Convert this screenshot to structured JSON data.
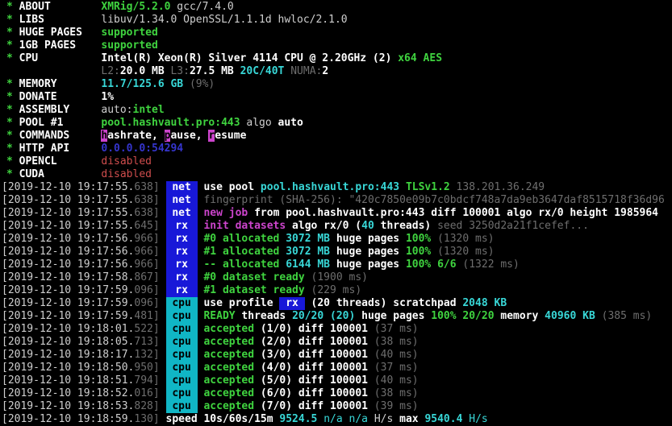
{
  "colors": {
    "background": "#000000",
    "text": "#cfcfcf",
    "bold": "#ffffff",
    "green": "#3fd33f",
    "cyan": "#38d7d7",
    "dim": "#6e6e6e",
    "magenta": "#cc44cc",
    "red": "#cf4d4d",
    "blue_text": "#3535cd",
    "badge_blue_bg": "#1818d8",
    "badge_cyan_bg": "#10b6c5"
  },
  "terminal": {
    "header": [
      {
        "star": "*",
        "label": "ABOUT",
        "segments": [
          [
            "g",
            "XMRig/5.2.0"
          ],
          [
            "w",
            " gcc/7.4.0"
          ]
        ]
      },
      {
        "star": "*",
        "label": "LIBS",
        "segments": [
          [
            "w",
            "libuv/1.34.0 OpenSSL/1.1.1d hwloc/2.1.0"
          ]
        ]
      },
      {
        "star": "*",
        "label": "HUGE PAGES",
        "segments": [
          [
            "g",
            "supported"
          ]
        ]
      },
      {
        "star": "*",
        "label": "1GB PAGES",
        "segments": [
          [
            "g",
            "supported"
          ]
        ]
      },
      {
        "star": "*",
        "label": "CPU",
        "segments": [
          [
            "b",
            "Intel(R) Xeon(R) Silver 4114 CPU @ 2.20GHz (2) "
          ],
          [
            "g",
            "x64 AES"
          ]
        ]
      },
      {
        "star": "",
        "label": "",
        "segments": [
          [
            "d",
            "L2:"
          ],
          [
            "b",
            "20.0 MB"
          ],
          [
            "d",
            " L3:"
          ],
          [
            "b",
            "27.5 MB"
          ],
          [
            "c",
            " 20C/40T"
          ],
          [
            "d",
            " NUMA:"
          ],
          [
            "b",
            "2"
          ]
        ]
      },
      {
        "star": "*",
        "label": "MEMORY",
        "segments": [
          [
            "c",
            "11.7/125.6 GB"
          ],
          [
            "d",
            " (9%)"
          ]
        ]
      },
      {
        "star": "*",
        "label": "DONATE",
        "segments": [
          [
            "b",
            "1%"
          ]
        ]
      },
      {
        "star": "*",
        "label": "ASSEMBLY",
        "segments": [
          [
            "w",
            "auto:"
          ],
          [
            "g",
            "intel"
          ]
        ]
      },
      {
        "star": "*",
        "label": "POOL #1",
        "segments": [
          [
            "g",
            "pool.hashvault.pro:443"
          ],
          [
            "w",
            " algo "
          ],
          [
            "b",
            "auto"
          ]
        ]
      },
      {
        "star": "*",
        "label": "COMMANDS",
        "segments": [
          [
            "hot",
            "h"
          ],
          [
            "b",
            "ashrate, "
          ],
          [
            "hot",
            "p"
          ],
          [
            "b",
            "ause, "
          ],
          [
            "hot",
            "r"
          ],
          [
            "b",
            "esume"
          ]
        ]
      },
      {
        "star": "*",
        "label": "HTTP API",
        "segments": [
          [
            "blu",
            "0.0.0.0:54294"
          ]
        ]
      },
      {
        "star": "*",
        "label": "OPENCL",
        "segments": [
          [
            "r",
            "disabled"
          ]
        ]
      },
      {
        "star": "*",
        "label": "CUDA",
        "segments": [
          [
            "r",
            "disabled"
          ]
        ]
      }
    ],
    "log": [
      {
        "time": "[2019-12-10 19:17:55.",
        "ms": "638]",
        "badge": {
          "text": "net",
          "style": "blue"
        },
        "segments": [
          [
            "b",
            "use pool "
          ],
          [
            "c",
            "pool.hashvault.pro:443"
          ],
          [
            "w",
            " "
          ],
          [
            "g",
            "TLSv1.2"
          ],
          [
            "d",
            " 138.201.36.249"
          ]
        ]
      },
      {
        "time": "[2019-12-10 19:17:55.",
        "ms": "638]",
        "badge": {
          "text": "net",
          "style": "blue"
        },
        "segments": [
          [
            "d",
            "fingerprint (SHA-256): \"420c7850e09b7c0bdcf748a7da9eb3647daf8515718f36d96"
          ]
        ]
      },
      {
        "time": "[2019-12-10 19:17:55.",
        "ms": "638]",
        "badge": {
          "text": "net",
          "style": "blue"
        },
        "segments": [
          [
            "m",
            "new job"
          ],
          [
            "b",
            " from pool.hashvault.pro:443 diff 100001 algo rx/0 height 1985964"
          ]
        ]
      },
      {
        "time": "[2019-12-10 19:17:55.",
        "ms": "645]",
        "badge": {
          "text": "rx",
          "style": "blue"
        },
        "segments": [
          [
            "m",
            "init datasets"
          ],
          [
            "b",
            " algo rx/0 ("
          ],
          [
            "c",
            "40"
          ],
          [
            "b",
            " threads) "
          ],
          [
            "d",
            "seed 3250d2a21f1cefef..."
          ]
        ]
      },
      {
        "time": "[2019-12-10 19:17:56.",
        "ms": "966]",
        "badge": {
          "text": "rx",
          "style": "blue"
        },
        "segments": [
          [
            "g",
            "#0 allocated"
          ],
          [
            "c",
            " 3072 MB"
          ],
          [
            "b",
            " huge pages "
          ],
          [
            "g",
            "100%"
          ],
          [
            "d",
            " (1320 ms)"
          ]
        ]
      },
      {
        "time": "[2019-12-10 19:17:56.",
        "ms": "966]",
        "badge": {
          "text": "rx",
          "style": "blue"
        },
        "segments": [
          [
            "g",
            "#1 allocated"
          ],
          [
            "c",
            " 3072 MB"
          ],
          [
            "b",
            " huge pages "
          ],
          [
            "g",
            "100%"
          ],
          [
            "d",
            " (1320 ms)"
          ]
        ]
      },
      {
        "time": "[2019-12-10 19:17:56.",
        "ms": "966]",
        "badge": {
          "text": "rx",
          "style": "blue"
        },
        "segments": [
          [
            "g",
            "-- allocated"
          ],
          [
            "c",
            " 6144 MB"
          ],
          [
            "b",
            " huge pages "
          ],
          [
            "g",
            "100% 6/6"
          ],
          [
            "d",
            " (1322 ms)"
          ]
        ]
      },
      {
        "time": "[2019-12-10 19:17:58.",
        "ms": "867]",
        "badge": {
          "text": "rx",
          "style": "blue"
        },
        "segments": [
          [
            "g",
            "#0 dataset ready"
          ],
          [
            "d",
            " (1900 ms)"
          ]
        ]
      },
      {
        "time": "[2019-12-10 19:17:59.",
        "ms": "096]",
        "badge": {
          "text": "rx",
          "style": "blue"
        },
        "segments": [
          [
            "g",
            "#1 dataset ready"
          ],
          [
            "d",
            " (229 ms)"
          ]
        ]
      },
      {
        "time": "[2019-12-10 19:17:59.",
        "ms": "096]",
        "badge": {
          "text": "cpu",
          "style": "cyan"
        },
        "segments": [
          [
            "b",
            "use profile "
          ],
          [
            "rxbadge",
            "rx"
          ],
          [
            "b",
            " (20 threads) scratchpad "
          ],
          [
            "c",
            "2048 KB"
          ]
        ]
      },
      {
        "time": "[2019-12-10 19:17:59.",
        "ms": "481]",
        "badge": {
          "text": "cpu",
          "style": "cyan"
        },
        "segments": [
          [
            "g",
            "READY"
          ],
          [
            "b",
            " threads "
          ],
          [
            "c",
            "20/20 (20)"
          ],
          [
            "b",
            " huge pages "
          ],
          [
            "g",
            "100% 20/20"
          ],
          [
            "b",
            " memory "
          ],
          [
            "c",
            "40960 KB"
          ],
          [
            "d",
            " (385 ms)"
          ]
        ]
      },
      {
        "time": "[2019-12-10 19:18:01.",
        "ms": "522]",
        "badge": {
          "text": "cpu",
          "style": "cyan"
        },
        "segments": [
          [
            "g",
            "accepted"
          ],
          [
            "b",
            " (1/0) diff 100001"
          ],
          [
            "d",
            " (37 ms)"
          ]
        ]
      },
      {
        "time": "[2019-12-10 19:18:05.",
        "ms": "713]",
        "badge": {
          "text": "cpu",
          "style": "cyan"
        },
        "segments": [
          [
            "g",
            "accepted"
          ],
          [
            "b",
            " (2/0) diff 100001"
          ],
          [
            "d",
            " (38 ms)"
          ]
        ]
      },
      {
        "time": "[2019-12-10 19:18:17.",
        "ms": "132]",
        "badge": {
          "text": "cpu",
          "style": "cyan"
        },
        "segments": [
          [
            "g",
            "accepted"
          ],
          [
            "b",
            " (3/0) diff 100001"
          ],
          [
            "d",
            " (40 ms)"
          ]
        ]
      },
      {
        "time": "[2019-12-10 19:18:50.",
        "ms": "950]",
        "badge": {
          "text": "cpu",
          "style": "cyan"
        },
        "segments": [
          [
            "g",
            "accepted"
          ],
          [
            "b",
            " (4/0) diff 100001"
          ],
          [
            "d",
            " (37 ms)"
          ]
        ]
      },
      {
        "time": "[2019-12-10 19:18:51.",
        "ms": "794]",
        "badge": {
          "text": "cpu",
          "style": "cyan"
        },
        "segments": [
          [
            "g",
            "accepted"
          ],
          [
            "b",
            " (5/0) diff 100001"
          ],
          [
            "d",
            " (40 ms)"
          ]
        ]
      },
      {
        "time": "[2019-12-10 19:18:52.",
        "ms": "016]",
        "badge": {
          "text": "cpu",
          "style": "cyan"
        },
        "segments": [
          [
            "g",
            "accepted"
          ],
          [
            "b",
            " (6/0) diff 100001"
          ],
          [
            "d",
            " (38 ms)"
          ]
        ]
      },
      {
        "time": "[2019-12-10 19:18:53.",
        "ms": "828]",
        "badge": {
          "text": "cpu",
          "style": "cyan"
        },
        "segments": [
          [
            "g",
            "accepted"
          ],
          [
            "b",
            " (7/0) diff 100001"
          ],
          [
            "d",
            " (39 ms)"
          ]
        ]
      },
      {
        "time": "[2019-12-10 19:18:59.",
        "ms": "130]",
        "badge": null,
        "segments": [
          [
            "b",
            "speed 10s/60s/15m "
          ],
          [
            "c",
            "9524.5"
          ],
          [
            "cn",
            " n/a n/a "
          ],
          [
            "w",
            "H/s "
          ],
          [
            "b",
            "max "
          ],
          [
            "c",
            "9540.4"
          ],
          [
            "cn",
            " H/s"
          ]
        ]
      }
    ]
  }
}
